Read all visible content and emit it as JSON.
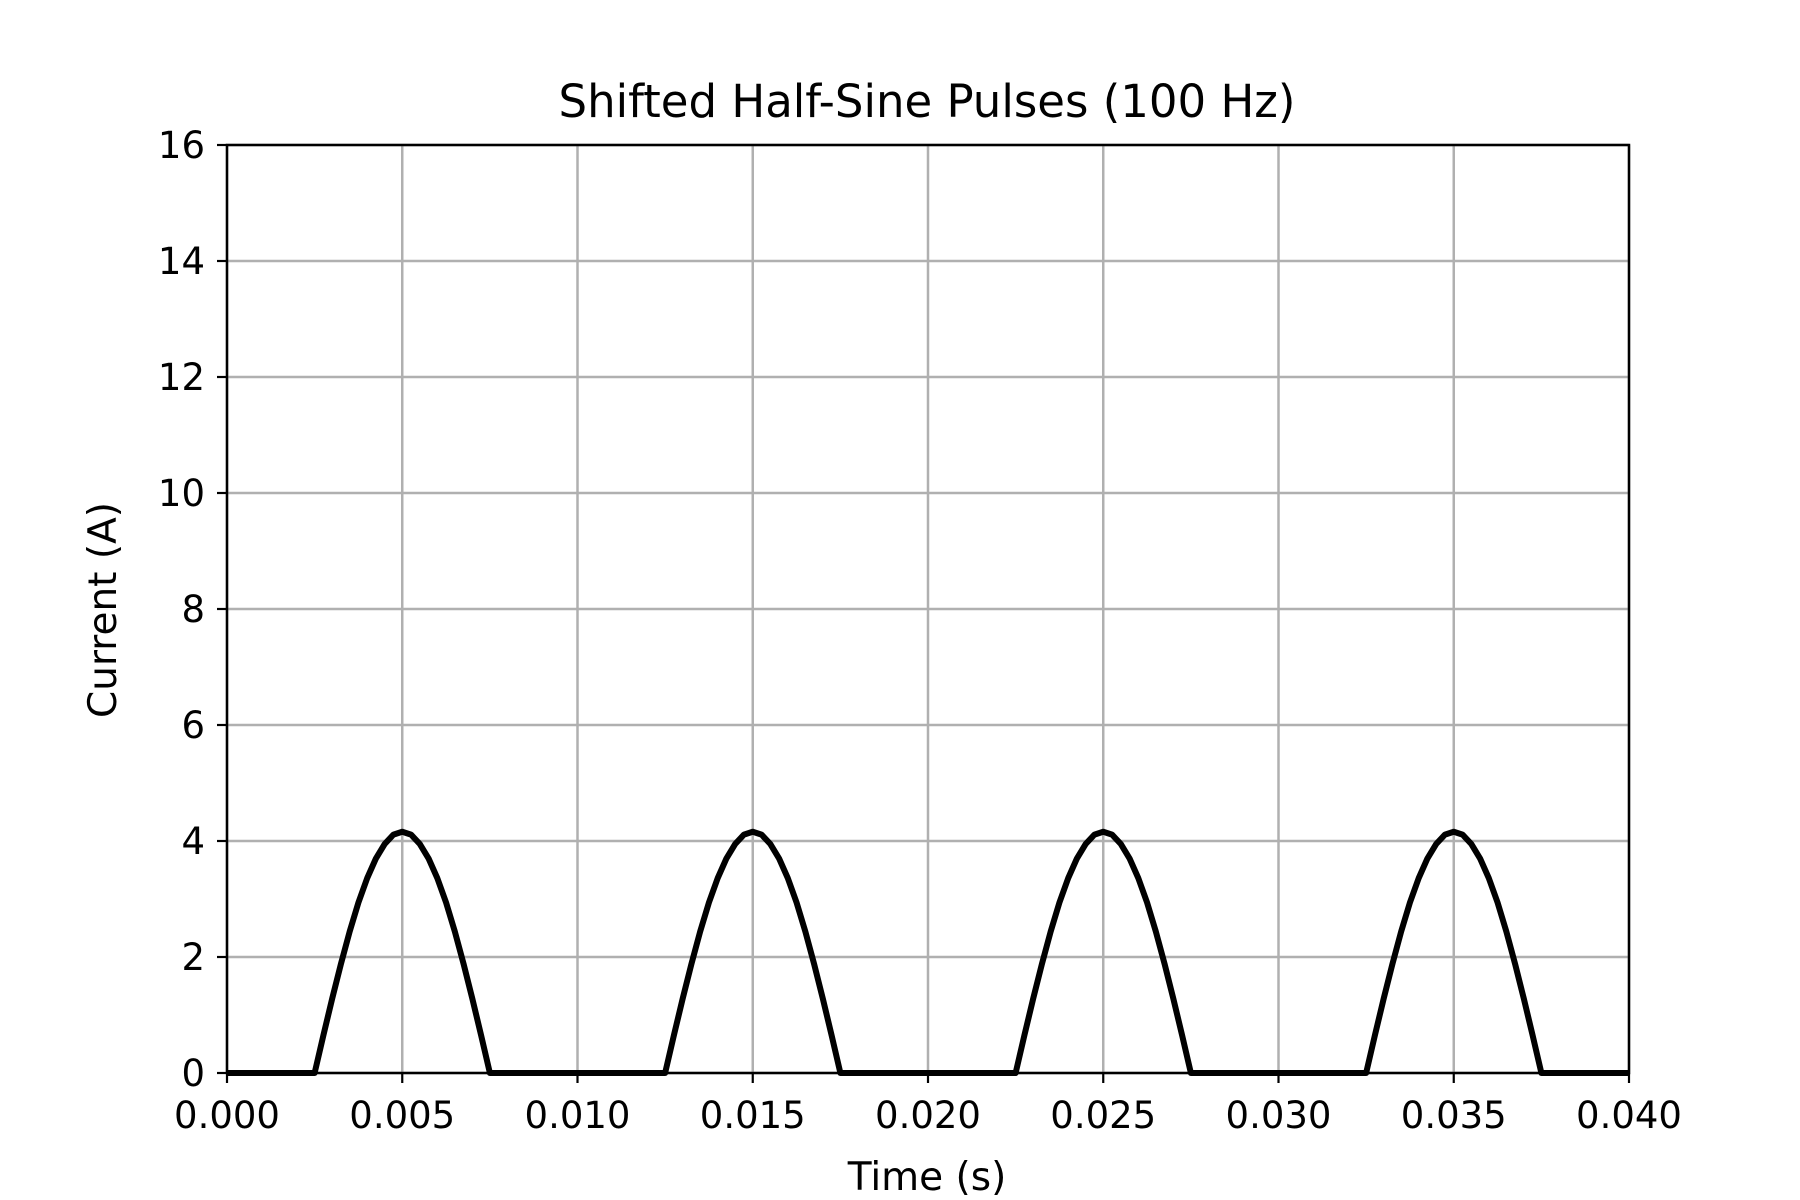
{
  "chart_data": {
    "type": "line",
    "title": "Shifted Half-Sine Pulses (100 Hz)",
    "xlabel": "Time (s)",
    "ylabel": "Current (A)",
    "xlim": [
      0,
      0.04
    ],
    "ylim": [
      0,
      16
    ],
    "grid": true,
    "x_ticks": [
      0,
      0.005,
      0.01,
      0.015,
      0.02,
      0.025,
      0.03,
      0.035,
      0.04
    ],
    "x_tick_labels": [
      "0.000",
      "0.005",
      "0.010",
      "0.015",
      "0.020",
      "0.025",
      "0.030",
      "0.035",
      "0.040"
    ],
    "y_ticks": [
      0,
      2,
      4,
      6,
      8,
      10,
      12,
      14,
      16
    ],
    "y_tick_labels": [
      "0",
      "2",
      "4",
      "6",
      "8",
      "10",
      "12",
      "14",
      "16"
    ],
    "series": [
      {
        "color": "#000000",
        "x": [
          0,
          0.0025,
          0.00275,
          0.003,
          0.00325,
          0.0035,
          0.00375,
          0.004,
          0.00425,
          0.0045,
          0.00475,
          0.005,
          0.00525,
          0.0055,
          0.00575,
          0.006,
          0.00625,
          0.0065,
          0.00675,
          0.007,
          0.00725,
          0.0075,
          0.0125,
          0.01275,
          0.013,
          0.01325,
          0.0135,
          0.01375,
          0.014,
          0.01425,
          0.0145,
          0.01475,
          0.015,
          0.01525,
          0.0155,
          0.01575,
          0.016,
          0.01625,
          0.0165,
          0.01675,
          0.017,
          0.01725,
          0.0175,
          0.0225,
          0.02275,
          0.023,
          0.02325,
          0.0235,
          0.02375,
          0.024,
          0.02425,
          0.0245,
          0.02475,
          0.025,
          0.02525,
          0.0255,
          0.02575,
          0.026,
          0.02625,
          0.0265,
          0.02675,
          0.027,
          0.02725,
          0.0275,
          0.0325,
          0.03275,
          0.033,
          0.03325,
          0.0335,
          0.03375,
          0.034,
          0.03425,
          0.0345,
          0.03475,
          0.035,
          0.03525,
          0.0355,
          0.03575,
          0.036,
          0.03625,
          0.0365,
          0.03675,
          0.037,
          0.03725,
          0.0375,
          0.04
        ],
        "y": [
          0,
          0,
          0.65,
          1.28,
          1.88,
          2.44,
          2.94,
          3.36,
          3.7,
          3.95,
          4.11,
          4.16,
          4.11,
          3.95,
          3.7,
          3.36,
          2.94,
          2.44,
          1.88,
          1.28,
          0.65,
          0,
          0,
          0.65,
          1.28,
          1.88,
          2.44,
          2.94,
          3.36,
          3.7,
          3.95,
          4.11,
          4.16,
          4.11,
          3.95,
          3.7,
          3.36,
          2.94,
          2.44,
          1.88,
          1.28,
          0.65,
          0,
          0,
          0.65,
          1.28,
          1.88,
          2.44,
          2.94,
          3.36,
          3.7,
          3.95,
          4.11,
          4.16,
          4.11,
          3.95,
          3.7,
          3.36,
          2.94,
          2.44,
          1.88,
          1.28,
          0.65,
          0,
          0,
          0.65,
          1.28,
          1.88,
          2.44,
          2.94,
          3.36,
          3.7,
          3.95,
          4.11,
          4.16,
          4.11,
          3.95,
          3.7,
          3.36,
          2.94,
          2.44,
          1.88,
          1.28,
          0.65,
          0,
          0
        ]
      }
    ]
  }
}
